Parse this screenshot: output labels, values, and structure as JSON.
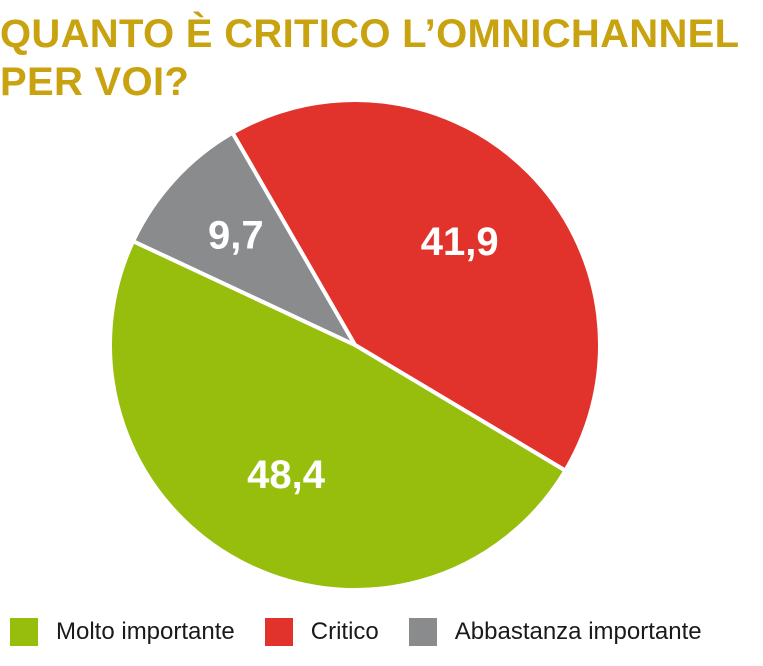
{
  "chart_data": {
    "type": "pie",
    "title_lines": [
      "QUANTO È CRITICO L’OMNICHANNEL",
      "PER VOI?"
    ],
    "slices": [
      {
        "name": "Critico",
        "value": 41.9,
        "label": "41,9",
        "color": "#e2322c"
      },
      {
        "name": "Molto importante",
        "value": 48.4,
        "label": "48,4",
        "color": "#97bd0d"
      },
      {
        "name": "Abbastanza importante",
        "value": 9.7,
        "label": "9,7",
        "color": "#8a8b8d"
      }
    ],
    "legend": [
      {
        "name": "Molto importante",
        "color": "#97bd0d"
      },
      {
        "name": "Critico",
        "color": "#e2322c"
      },
      {
        "name": "Abbastanza importante",
        "color": "#8a8b8d"
      }
    ],
    "legend_position": "bottom"
  }
}
